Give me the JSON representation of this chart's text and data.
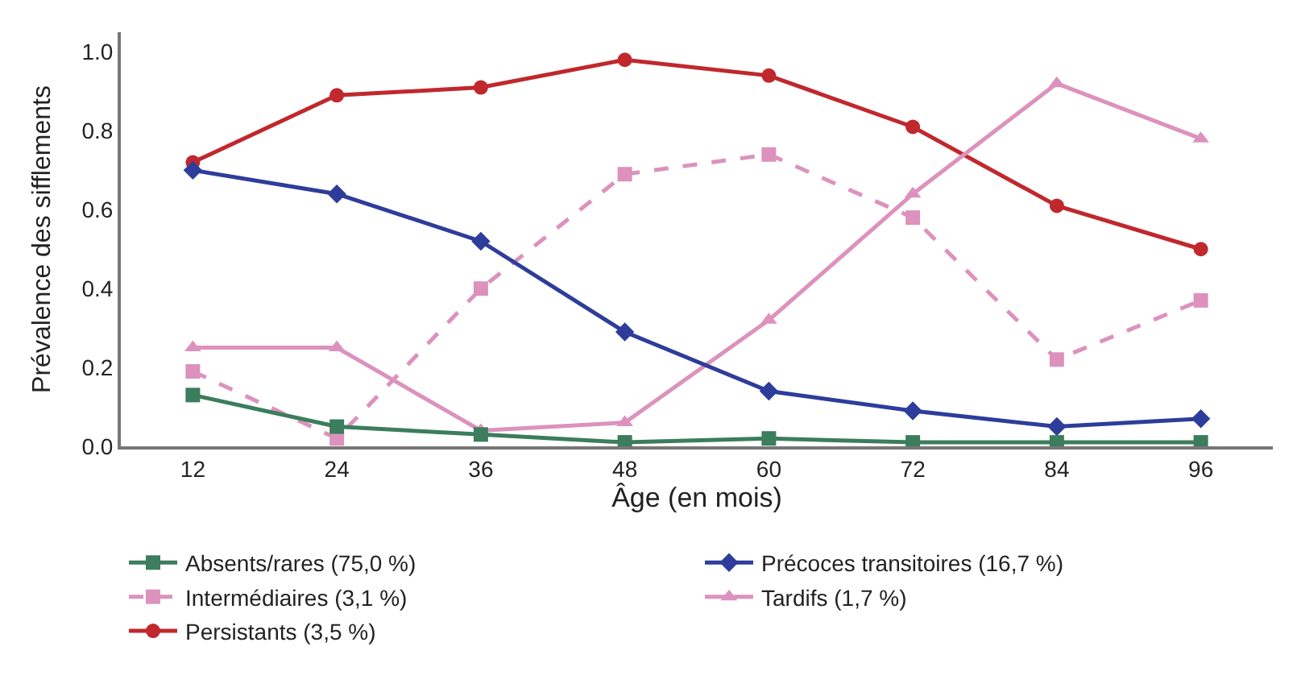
{
  "chart_data": {
    "type": "line",
    "xlabel": "Âge (en mois)",
    "ylabel": "Prévalence des sifflements",
    "categories": [
      "12",
      "24",
      "36",
      "48",
      "60",
      "72",
      "84",
      "96"
    ],
    "ylim": [
      0,
      1.05
    ],
    "yticks": [
      {
        "value": 0,
        "label": "0.0"
      },
      {
        "value": 0.2,
        "label": "0.2"
      },
      {
        "value": 0.4,
        "label": "0.4"
      },
      {
        "value": 0.6,
        "label": "0.6"
      },
      {
        "value": 0.8,
        "label": "0.8"
      },
      {
        "value": 1.0,
        "label": "1.0"
      }
    ],
    "legend": "bottom",
    "series": [
      {
        "name": "Absents/rares (75,0 %)",
        "color": "#3b7d5c",
        "marker": "square",
        "line_style": "solid",
        "values": [
          0.13,
          0.05,
          0.03,
          0.01,
          0.02,
          0.01,
          0.01,
          0.01
        ]
      },
      {
        "name": "Précoces transitoires (16,7 %)",
        "color": "#2e3d9a",
        "marker": "diamond",
        "line_style": "solid",
        "values": [
          0.7,
          0.64,
          0.52,
          0.29,
          0.14,
          0.09,
          0.05,
          0.07
        ]
      },
      {
        "name": "Intermédiaires (3,1 %)",
        "color": "#dc92bd",
        "marker": "square",
        "line_style": "dashed",
        "values": [
          0.19,
          0.02,
          0.4,
          0.69,
          0.74,
          0.58,
          0.22,
          0.37
        ]
      },
      {
        "name": "Tardifs (1,7 %)",
        "color": "#dc92bd",
        "marker": "triangle",
        "line_style": "solid",
        "values": [
          0.25,
          0.25,
          0.04,
          0.06,
          0.32,
          0.64,
          0.92,
          0.78
        ]
      },
      {
        "name": "Persistants (3,5 %)",
        "color": "#c0282d",
        "marker": "circle",
        "line_style": "solid",
        "values": [
          0.72,
          0.89,
          0.91,
          0.98,
          0.94,
          0.81,
          0.61,
          0.5
        ]
      }
    ]
  }
}
